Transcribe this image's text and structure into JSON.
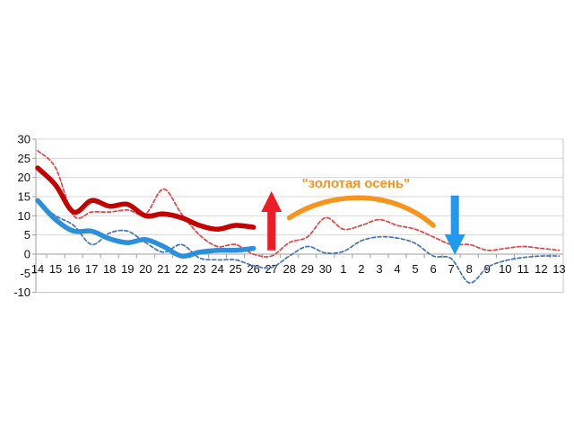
{
  "chart_data": {
    "type": "line",
    "title": "",
    "xlabel": "",
    "ylabel": "",
    "ylim": [
      -10,
      30
    ],
    "yticks": [
      30,
      25,
      20,
      15,
      10,
      5,
      0,
      -5,
      -10
    ],
    "grid": "horizontal",
    "legend": "none",
    "categories": [
      "14",
      "15",
      "16",
      "17",
      "18",
      "19",
      "20",
      "21",
      "22",
      "23",
      "24",
      "25",
      "26",
      "27",
      "28",
      "29",
      "30",
      "1",
      "2",
      "3",
      "4",
      "5",
      "6",
      "7",
      "8",
      "9",
      "10",
      "11",
      "12",
      "13"
    ],
    "series": [
      {
        "name": "red-dashed-line",
        "style": "dashed",
        "color": "#e04545",
        "width": 1.7,
        "values": [
          27,
          22.5,
          10,
          11,
          11,
          11.5,
          10.5,
          17,
          10.5,
          5,
          2,
          2.5,
          0,
          -0.5,
          3,
          4.5,
          9.5,
          6.5,
          7.5,
          9,
          7.5,
          6.5,
          4.5,
          2.5,
          2.5,
          1,
          1.5,
          2,
          1.5,
          1
        ]
      },
      {
        "name": "blue-dashed-line",
        "style": "dashed",
        "color": "#4273b8",
        "width": 1.7,
        "values": [
          13.5,
          10,
          7.5,
          2.5,
          5.5,
          6,
          3,
          0.5,
          2.5,
          -1,
          -1.5,
          -1.5,
          -3,
          -3.5,
          -0.5,
          2,
          0.3,
          0.7,
          3.5,
          4.5,
          4.2,
          2.8,
          -0.5,
          -1.2,
          -7.5,
          -3.5,
          -1.7,
          -0.9,
          -0.5,
          -0.5
        ]
      },
      {
        "name": "red-solid-line",
        "style": "solid",
        "color": "#c40000",
        "width": 5.5,
        "values": [
          22.5,
          18,
          11,
          14,
          12.5,
          13,
          10,
          10.5,
          9.5,
          7.5,
          6.5,
          7.5,
          7,
          null,
          null,
          null,
          null,
          null,
          null,
          null,
          null,
          null,
          null,
          null,
          null,
          null,
          null,
          null,
          null,
          null
        ]
      },
      {
        "name": "blue-solid-line",
        "style": "solid",
        "color": "#2b90d9",
        "width": 5.5,
        "values": [
          14,
          9,
          6,
          6,
          4,
          3,
          3.8,
          2,
          -0.5,
          0.5,
          1,
          1,
          1.5,
          null,
          null,
          null,
          null,
          null,
          null,
          null,
          null,
          null,
          null,
          null,
          null,
          null,
          null,
          null,
          null,
          null
        ]
      }
    ],
    "annotations": {
      "label": {
        "text": "\"золотая осень\"",
        "color": "#f7941e",
        "between": [
          "1",
          "2"
        ],
        "value": 17.3
      },
      "arc": {
        "color": "#f7941e",
        "from_category": "28",
        "from_value": 9.5,
        "peak_value": 14.7,
        "to_category": "6",
        "to_value": 7.5
      },
      "arrow_up": {
        "color": "#ee1c25",
        "category": "27",
        "from_value": 1,
        "to_value": 16.4
      },
      "arrow_down": {
        "color": "#1e9bf0",
        "category": "7",
        "from_value": 15.3,
        "to_value": -0.2
      }
    },
    "axis_colors": {
      "gridline": "#d8d8d8",
      "axis": "#9c9c9c",
      "frame": "#c4c4c4"
    }
  }
}
